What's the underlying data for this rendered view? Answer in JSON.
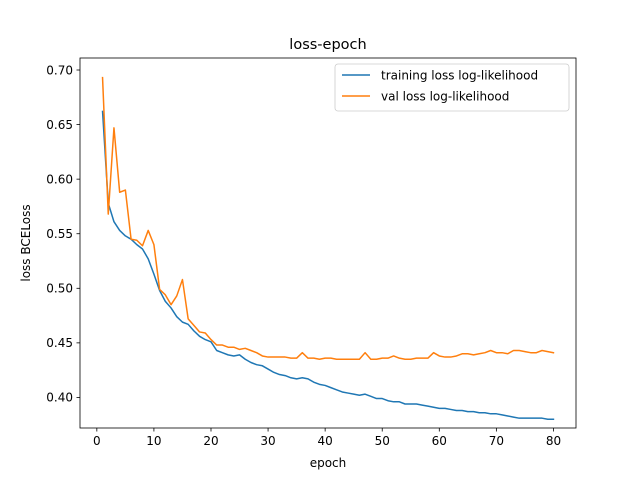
{
  "chart_data": {
    "type": "line",
    "title": "loss-epoch",
    "xlabel": "epoch",
    "ylabel": "loss BCELoss",
    "xlim": [
      -2.95,
      83.95
    ],
    "ylim": [
      0.372,
      0.711
    ],
    "xticks": [
      0,
      10,
      20,
      30,
      40,
      50,
      60,
      70,
      80
    ],
    "xtick_labels": [
      "0",
      "10",
      "20",
      "30",
      "40",
      "50",
      "60",
      "70",
      "80"
    ],
    "yticks": [
      0.4,
      0.45,
      0.5,
      0.55,
      0.6,
      0.65,
      0.7
    ],
    "ytick_labels": [
      "0.40",
      "0.45",
      "0.50",
      "0.55",
      "0.60",
      "0.65",
      "0.70"
    ],
    "grid": false,
    "legend_position": "top-right",
    "x": [
      1,
      2,
      3,
      4,
      5,
      6,
      7,
      8,
      9,
      10,
      11,
      12,
      13,
      14,
      15,
      16,
      17,
      18,
      19,
      20,
      21,
      22,
      23,
      24,
      25,
      26,
      27,
      28,
      29,
      30,
      31,
      32,
      33,
      34,
      35,
      36,
      37,
      38,
      39,
      40,
      41,
      42,
      43,
      44,
      45,
      46,
      47,
      48,
      49,
      50,
      51,
      52,
      53,
      54,
      55,
      56,
      57,
      58,
      59,
      60,
      61,
      62,
      63,
      64,
      65,
      66,
      67,
      68,
      69,
      70,
      71,
      72,
      73,
      74,
      75,
      76,
      77,
      78,
      79,
      80
    ],
    "series": [
      {
        "name": "training loss log-likelihood",
        "color": "#1f77b4",
        "values": [
          0.662,
          0.578,
          0.561,
          0.553,
          0.548,
          0.545,
          0.54,
          0.536,
          0.527,
          0.513,
          0.498,
          0.488,
          0.482,
          0.474,
          0.469,
          0.467,
          0.461,
          0.456,
          0.453,
          0.451,
          0.443,
          0.441,
          0.439,
          0.438,
          0.439,
          0.435,
          0.432,
          0.43,
          0.429,
          0.426,
          0.423,
          0.421,
          0.42,
          0.418,
          0.417,
          0.418,
          0.417,
          0.414,
          0.412,
          0.411,
          0.409,
          0.407,
          0.405,
          0.404,
          0.403,
          0.402,
          0.403,
          0.401,
          0.399,
          0.399,
          0.397,
          0.396,
          0.396,
          0.394,
          0.394,
          0.394,
          0.393,
          0.392,
          0.391,
          0.39,
          0.39,
          0.389,
          0.388,
          0.388,
          0.387,
          0.387,
          0.386,
          0.386,
          0.385,
          0.385,
          0.384,
          0.383,
          0.382,
          0.381,
          0.381,
          0.381,
          0.381,
          0.381,
          0.38,
          0.38
        ]
      },
      {
        "name": "val loss log-likelihood",
        "color": "#ff7f0e",
        "values": [
          0.693,
          0.568,
          0.647,
          0.588,
          0.59,
          0.545,
          0.544,
          0.539,
          0.553,
          0.54,
          0.499,
          0.494,
          0.485,
          0.493,
          0.508,
          0.472,
          0.466,
          0.46,
          0.459,
          0.453,
          0.448,
          0.448,
          0.446,
          0.446,
          0.444,
          0.445,
          0.443,
          0.441,
          0.438,
          0.437,
          0.437,
          0.437,
          0.437,
          0.436,
          0.436,
          0.441,
          0.436,
          0.436,
          0.435,
          0.436,
          0.436,
          0.435,
          0.435,
          0.435,
          0.435,
          0.435,
          0.441,
          0.435,
          0.435,
          0.436,
          0.436,
          0.438,
          0.436,
          0.435,
          0.435,
          0.436,
          0.436,
          0.436,
          0.441,
          0.438,
          0.437,
          0.437,
          0.438,
          0.44,
          0.44,
          0.439,
          0.44,
          0.441,
          0.443,
          0.441,
          0.441,
          0.44,
          0.443,
          0.443,
          0.442,
          0.441,
          0.441,
          0.443,
          0.442,
          0.441
        ]
      }
    ]
  }
}
